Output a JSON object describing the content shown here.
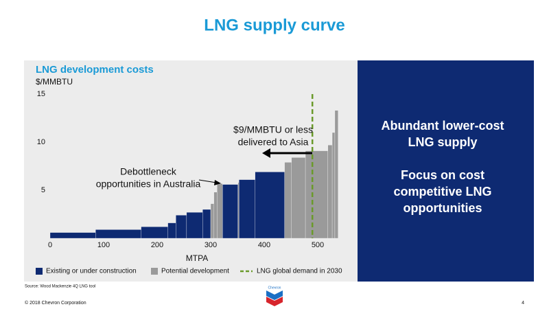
{
  "title": "LNG supply curve",
  "chart_data": {
    "type": "supply-curve",
    "title": "LNG development costs",
    "y_label": "$/MMBTU",
    "x_label": "MTPA",
    "xlim": [
      0,
      550
    ],
    "ylim": [
      0,
      15
    ],
    "xticks": [
      0,
      100,
      200,
      300,
      400,
      500
    ],
    "yticks": [
      5,
      10,
      15
    ],
    "series": [
      {
        "name": "Existing or under construction",
        "color": "#0e2a72",
        "x_start": [
          0,
          85,
          170,
          220,
          235,
          255,
          285,
          322,
          353,
          383
        ],
        "x_end": [
          85,
          170,
          220,
          235,
          255,
          285,
          300,
          351,
          383,
          438
        ],
        "values": [
          0.6,
          0.9,
          1.2,
          1.6,
          2.4,
          2.7,
          3.0,
          5.6,
          6.1,
          6.9
        ]
      },
      {
        "name": "Potential development",
        "color": "#9a9a9a",
        "x_start": [
          300,
          306,
          312,
          351,
          438,
          451,
          477,
          519,
          527,
          532
        ],
        "x_end": [
          306,
          312,
          322,
          353,
          451,
          477,
          519,
          527,
          532,
          538
        ],
        "values": [
          3.6,
          4.8,
          5.7,
          5.8,
          7.9,
          8.4,
          9.1,
          9.7,
          11,
          13.3
        ]
      }
    ],
    "reference_lines": [
      {
        "name": "LNG global demand in 2030",
        "x": 490,
        "color": "#6a9a2a"
      }
    ],
    "annotations": [
      [
        "$9/MMBTU or less",
        "delivered to Asia"
      ],
      [
        "Debottleneck",
        "opportunities in Australia"
      ]
    ]
  },
  "panel": {
    "headline": [
      "Abundant lower-cost",
      "LNG supply"
    ],
    "subline": [
      "Focus on cost",
      "competitive LNG",
      "opportunities"
    ]
  },
  "footer": {
    "source": "Source: Wood Mackenzie 4Q LNG tool",
    "copyright": "© 2018 Chevron Corporation",
    "page": "4",
    "logo": "Chevron"
  }
}
